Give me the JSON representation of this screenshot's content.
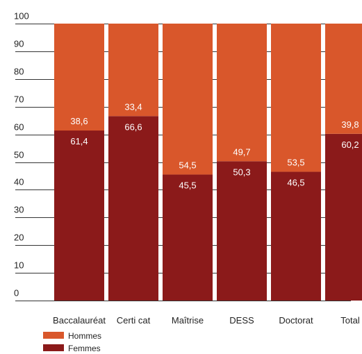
{
  "chart_data": {
    "type": "bar",
    "stacked": true,
    "orientation": "vertical",
    "categories": [
      "Baccalauréat",
      "Certi cat",
      "Maîtrise",
      "DESS",
      "Doctorat",
      "Total"
    ],
    "series": [
      {
        "name": "Femmes",
        "color": "#8b1a1a",
        "values": [
          61.4,
          66.6,
          45.5,
          50.3,
          46.5,
          60.2
        ]
      },
      {
        "name": "Hommes",
        "color": "#d9572b",
        "values": [
          38.6,
          33.4,
          54.5,
          49.7,
          53.5,
          39.8
        ]
      }
    ],
    "value_labels": {
      "Femmes": [
        "61,4",
        "66,6",
        "45,5",
        "50,3",
        "46,5",
        "60,2"
      ],
      "Hommes": [
        "38,6",
        "33,4",
        "54,5",
        "49,7",
        "53,5",
        "39,8"
      ]
    },
    "ylim": [
      0,
      100
    ],
    "yticks": [
      0,
      10,
      20,
      30,
      40,
      50,
      60,
      70,
      80,
      90,
      100
    ],
    "ytick_labels": [
      "0",
      "10",
      "20",
      "30",
      "40",
      "50",
      "60",
      "70",
      "80",
      "90",
      "100"
    ],
    "grid": "horizontal",
    "legend": {
      "position": "bottom-left",
      "entries": [
        "Hommes",
        "Femmes"
      ]
    },
    "title": "",
    "xlabel": "",
    "ylabel": ""
  }
}
